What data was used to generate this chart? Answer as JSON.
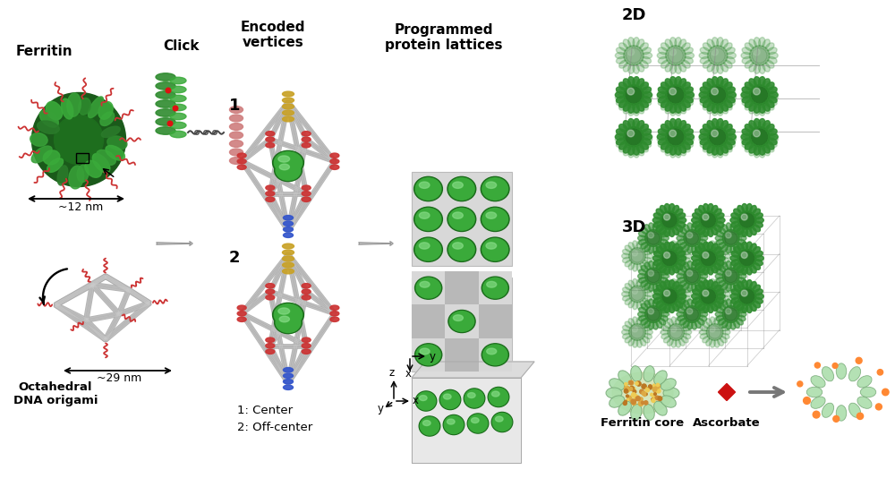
{
  "bg_color": "#ffffff",
  "labels": {
    "ferritin": "Ferritin",
    "click": "Click",
    "encoded_vertices": "Encoded\nvertices",
    "programmed_lattices": "Programmed\nprotein lattices",
    "label_12nm": "~12 nm",
    "label_29nm": "~29 nm",
    "octahedral": "Octahedral\nDNA origami",
    "center": "1: Center",
    "off_center": "2: Off-center",
    "label_1": "1",
    "label_2": "2",
    "label_2d": "2D",
    "label_3d": "3D",
    "ferritin_core": "Ferritin core",
    "ascorbate": "Ascorbate",
    "axis_x": "x",
    "axis_y": "y",
    "axis_z": "z"
  },
  "colors": {
    "green_dark": "#1a6b1a",
    "green_mid": "#2e8b2e",
    "green_bright": "#3aaa3a",
    "green_light": "#66cc66",
    "green_sphere_hi": "#88dd88",
    "green_pale": "#aaddaa",
    "green_ghost": "#c8e8c8",
    "red_helix": "#cc3333",
    "salmon_helix": "#d08080",
    "gray_tube": "#aaaaaa",
    "gray_tube_hi": "#cccccc",
    "gold": "#c9a227",
    "blue_helix": "#3355cc",
    "arrow_gray": "#999999",
    "arrow_dark": "#777777",
    "white": "#ffffff",
    "light_gray_bg": "#e0e0e0",
    "mid_gray_bg": "#c0c0c0",
    "checker_light": "#d8d8d8",
    "checker_dark": "#b0b0b0",
    "orange": "#ff8833",
    "gold_dot1": "#cc8833",
    "gold_dot2": "#ddaa44",
    "gold_dot3": "#bb7722",
    "core_outer": "#b8cc88",
    "core_inner": "#d4c870"
  },
  "figure_size": [
    10.0,
    5.44
  ],
  "dpi": 100
}
